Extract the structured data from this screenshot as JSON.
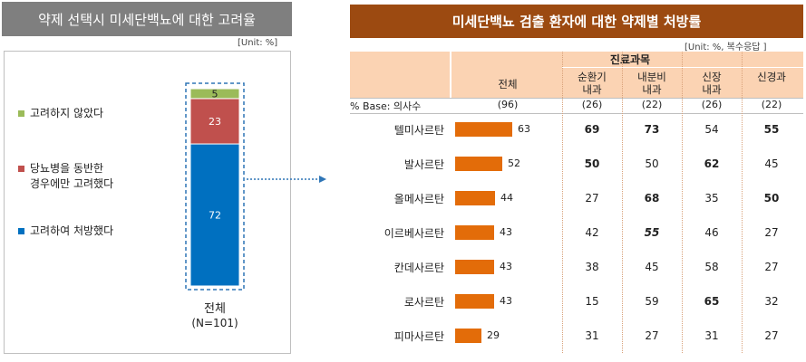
{
  "left_panel": {
    "title": "약제 선택시 미세단백뇨에 대한 고려율",
    "unit": "[Unit: %]",
    "legend": [
      {
        "label": "고려하지 않았다",
        "color": "#9bbb59"
      },
      {
        "label": "당뇨병을 동반한\n경우에만 고려했다",
        "color": "#c0504d"
      },
      {
        "label": "고려하여 처방했다",
        "color": "#0070c0"
      }
    ],
    "category": "전체",
    "n_label": "(N=101)"
  },
  "right_panel": {
    "title": "미세단백뇨 검출 환자에 대한 약제별 처방률",
    "unit": "[Unit: %, 복수응답 ]",
    "group_header": "진료과목",
    "col_total": "전체",
    "columns": [
      "순환기\n내과",
      "내분비\n내과",
      "신장\n내과",
      "신경과"
    ],
    "base_label": "% Base: 의사수",
    "base_total": "(96)",
    "base_values": [
      "(26)",
      "(22)",
      "(26)",
      "(22)"
    ]
  },
  "chart_data": [
    {
      "type": "bar",
      "stacked": true,
      "categories": [
        "전체"
      ],
      "series": [
        {
          "name": "고려하여 처방했다",
          "values": [
            72
          ],
          "color": "#0070c0"
        },
        {
          "name": "당뇨병을 동반한 경우에만 고려했다",
          "values": [
            23
          ],
          "color": "#c0504d"
        },
        {
          "name": "고려하지 않았다",
          "values": [
            5
          ],
          "color": "#9bbb59"
        }
      ],
      "title": "약제 선택시 미세단백뇨에 대한 고려율",
      "ylim": [
        0,
        100
      ]
    },
    {
      "type": "table",
      "title": "미세단백뇨 검출 환자에 대한 약제별 처방률",
      "rows": [
        {
          "drug": "텔미사르탄",
          "total": 63,
          "values": [
            69,
            73,
            54,
            55
          ],
          "bold": [
            true,
            true,
            false,
            true
          ],
          "italic": [
            false,
            false,
            false,
            false
          ]
        },
        {
          "drug": "발사르탄",
          "total": 52,
          "values": [
            50,
            50,
            62,
            45
          ],
          "bold": [
            true,
            false,
            true,
            false
          ],
          "italic": [
            false,
            false,
            false,
            false
          ]
        },
        {
          "drug": "올메사르탄",
          "total": 44,
          "values": [
            27,
            68,
            35,
            50
          ],
          "bold": [
            false,
            true,
            false,
            true
          ],
          "italic": [
            false,
            false,
            false,
            false
          ]
        },
        {
          "drug": "이르베사르탄",
          "total": 43,
          "values": [
            42,
            55,
            46,
            27
          ],
          "bold": [
            false,
            true,
            false,
            false
          ],
          "italic": [
            false,
            true,
            false,
            false
          ]
        },
        {
          "drug": "칸데사르탄",
          "total": 43,
          "values": [
            38,
            45,
            58,
            27
          ],
          "bold": [
            false,
            false,
            false,
            false
          ],
          "italic": [
            false,
            false,
            false,
            false
          ]
        },
        {
          "drug": "로사르탄",
          "total": 43,
          "values": [
            15,
            59,
            65,
            32
          ],
          "bold": [
            false,
            false,
            true,
            false
          ],
          "italic": [
            false,
            false,
            false,
            false
          ]
        },
        {
          "drug": "피마사르탄",
          "total": 29,
          "values": [
            31,
            27,
            31,
            27
          ],
          "bold": [
            false,
            false,
            false,
            false
          ],
          "italic": [
            false,
            false,
            false,
            false
          ]
        }
      ],
      "bar_color": "#e36c09",
      "xlim": [
        0,
        100
      ]
    }
  ]
}
